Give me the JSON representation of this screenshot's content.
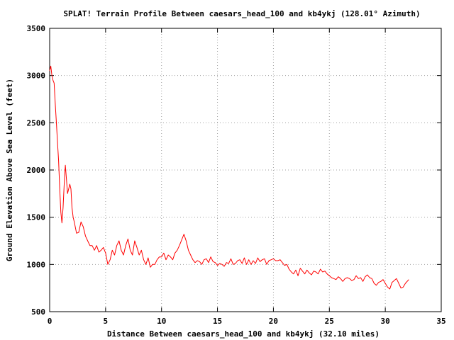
{
  "chart_data": {
    "type": "line",
    "title": "SPLAT! Terrain Profile Between caesars_head_100 and kb4ykj (128.01° Azimuth)",
    "xlabel": "Distance Between caesars_head_100 and kb4ykj (32.10 miles)",
    "ylabel": "Ground Elevation Above Sea Level (feet)",
    "xlim": [
      0,
      35
    ],
    "ylim": [
      500,
      3500
    ],
    "xticks": [
      0,
      5,
      10,
      15,
      20,
      25,
      30,
      35
    ],
    "yticks": [
      500,
      1000,
      1500,
      2000,
      2500,
      3000,
      3500
    ],
    "xtick_labels": [
      "0",
      "5",
      "10",
      "15",
      "20",
      "25",
      "30",
      "35"
    ],
    "ytick_labels": [
      "500",
      "1000",
      "1500",
      "2000",
      "2500",
      "3000",
      "3500"
    ],
    "grid": true,
    "series_color": "#ff0000",
    "series": [
      {
        "name": "",
        "x": [
          0,
          0.1,
          0.2,
          0.3,
          0.4,
          0.5,
          0.6,
          0.7,
          0.8,
          0.9,
          1.0,
          1.1,
          1.2,
          1.3,
          1.4,
          1.5,
          1.6,
          1.7,
          1.8,
          1.9,
          2.0,
          2.1,
          2.2,
          2.4,
          2.6,
          2.8,
          3.0,
          3.2,
          3.4,
          3.6,
          3.8,
          4.0,
          4.2,
          4.4,
          4.6,
          4.8,
          5.0,
          5.2,
          5.4,
          5.6,
          5.8,
          6.0,
          6.2,
          6.4,
          6.6,
          6.8,
          7.0,
          7.2,
          7.4,
          7.6,
          7.8,
          8.0,
          8.2,
          8.4,
          8.6,
          8.8,
          9.0,
          9.2,
          9.4,
          9.6,
          9.8,
          10.0,
          10.2,
          10.4,
          10.6,
          10.8,
          11.0,
          11.2,
          11.4,
          11.6,
          11.8,
          12.0,
          12.2,
          12.4,
          12.6,
          12.8,
          13.0,
          13.2,
          13.4,
          13.6,
          13.8,
          14.0,
          14.2,
          14.4,
          14.6,
          14.8,
          15.0,
          15.2,
          15.4,
          15.6,
          15.8,
          16.0,
          16.2,
          16.4,
          16.6,
          16.8,
          17.0,
          17.2,
          17.4,
          17.6,
          17.8,
          18.0,
          18.2,
          18.4,
          18.6,
          18.8,
          19.0,
          19.2,
          19.4,
          19.6,
          19.8,
          20.0,
          20.2,
          20.4,
          20.6,
          20.8,
          21.0,
          21.2,
          21.4,
          21.6,
          21.8,
          22.0,
          22.2,
          22.4,
          22.6,
          22.8,
          23.0,
          23.2,
          23.4,
          23.6,
          23.8,
          24.0,
          24.2,
          24.4,
          24.6,
          24.8,
          25.0,
          25.2,
          25.4,
          25.6,
          25.8,
          26.0,
          26.2,
          26.4,
          26.6,
          26.8,
          27.0,
          27.2,
          27.4,
          27.6,
          27.8,
          28.0,
          28.2,
          28.4,
          28.6,
          28.8,
          29.0,
          29.2,
          29.4,
          29.6,
          29.8,
          30.0,
          30.2,
          30.4,
          30.6,
          30.8,
          31.0,
          31.2,
          31.4,
          31.6,
          31.8,
          32.1
        ],
        "y": [
          3050,
          3100,
          3000,
          2950,
          2920,
          2700,
          2500,
          2300,
          2100,
          1800,
          1550,
          1440,
          1600,
          1850,
          2050,
          1900,
          1750,
          1800,
          1850,
          1800,
          1600,
          1500,
          1450,
          1330,
          1340,
          1450,
          1400,
          1300,
          1250,
          1200,
          1200,
          1150,
          1200,
          1130,
          1150,
          1180,
          1120,
          1000,
          1050,
          1150,
          1100,
          1200,
          1250,
          1150,
          1100,
          1200,
          1270,
          1150,
          1100,
          1250,
          1180,
          1100,
          1150,
          1050,
          1000,
          1070,
          970,
          1000,
          1000,
          1050,
          1080,
          1080,
          1120,
          1050,
          1100,
          1080,
          1050,
          1120,
          1150,
          1200,
          1260,
          1320,
          1250,
          1150,
          1100,
          1050,
          1020,
          1040,
          1030,
          1000,
          1050,
          1060,
          1020,
          1080,
          1030,
          1020,
          990,
          1010,
          1000,
          980,
          1020,
          1010,
          1060,
          1000,
          1010,
          1040,
          1050,
          1010,
          1070,
          1000,
          1050,
          1000,
          1040,
          1010,
          1070,
          1030,
          1050,
          1060,
          1000,
          1040,
          1050,
          1060,
          1040,
          1040,
          1050,
          1020,
          990,
          1000,
          950,
          920,
          900,
          940,
          880,
          960,
          930,
          900,
          940,
          910,
          890,
          930,
          920,
          900,
          950,
          920,
          930,
          900,
          880,
          860,
          850,
          840,
          870,
          850,
          820,
          850,
          860,
          850,
          830,
          840,
          880,
          850,
          860,
          820,
          870,
          890,
          860,
          850,
          800,
          780,
          810,
          820,
          840,
          800,
          760,
          740,
          810,
          830,
          850,
          800,
          750,
          760,
          800,
          840
        ]
      }
    ]
  }
}
